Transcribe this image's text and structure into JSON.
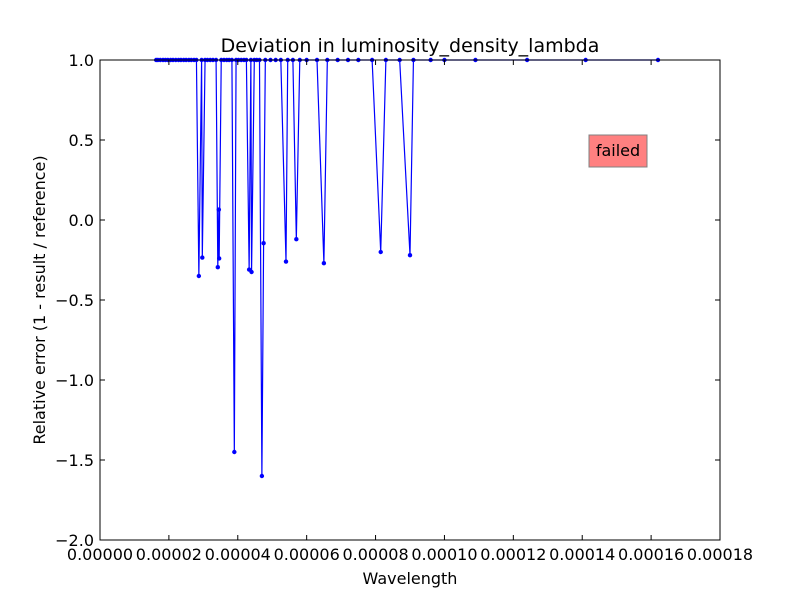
{
  "chart_data": {
    "type": "scatter",
    "title": "Deviation in luminosity_density_lambda",
    "xlabel": "Wavelength",
    "ylabel": "Relative error (1 - result / reference)",
    "xlim": [
      0.0,
      0.00018
    ],
    "ylim": [
      -2.0,
      1.0
    ],
    "x_ticks": [
      "0.00000",
      "0.00002",
      "0.00004",
      "0.00006",
      "0.00008",
      "0.00010",
      "0.00012",
      "0.00014",
      "0.00016",
      "0.00018"
    ],
    "y_ticks": [
      "−2.0",
      "−1.5",
      "−1.0",
      "−0.5",
      "0.0",
      "0.5",
      "1.0"
    ],
    "grid": false,
    "status_label": "failed",
    "colors": {
      "series": "#0000ff",
      "status_fill": "#ff8080",
      "status_border": "#808080"
    },
    "series": [
      {
        "values": [
          [
            1.63e-05,
            1.0
          ],
          [
            1.68e-05,
            1.0
          ],
          [
            1.75e-05,
            1.0
          ],
          [
            1.83e-05,
            1.0
          ],
          [
            1.9e-05,
            1.0
          ],
          [
            1.97e-05,
            1.0
          ],
          [
            2.05e-05,
            1.0
          ],
          [
            2.12e-05,
            1.0
          ],
          [
            2.2e-05,
            1.0
          ],
          [
            2.28e-05,
            1.0
          ],
          [
            2.35e-05,
            1.0
          ],
          [
            2.43e-05,
            1.0
          ],
          [
            2.5e-05,
            1.0
          ],
          [
            2.58e-05,
            1.0
          ],
          [
            2.65e-05,
            1.0
          ],
          [
            2.73e-05,
            1.0
          ],
          [
            2.8e-05,
            1.0
          ],
          [
            2.87e-05,
            -0.35
          ],
          [
            2.95e-05,
            1.0
          ],
          [
            2.97e-05,
            -0.235
          ],
          [
            3.05e-05,
            1.0
          ],
          [
            3.12e-05,
            1.0
          ],
          [
            3.2e-05,
            1.0
          ],
          [
            3.28e-05,
            1.0
          ],
          [
            3.37e-05,
            1.0
          ],
          [
            3.42e-05,
            -0.295
          ],
          [
            3.45e-05,
            0.065
          ],
          [
            3.46e-05,
            -0.24
          ],
          [
            3.52e-05,
            1.0
          ],
          [
            3.6e-05,
            1.0
          ],
          [
            3.68e-05,
            1.0
          ],
          [
            3.75e-05,
            1.0
          ],
          [
            3.83e-05,
            1.0
          ],
          [
            3.9e-05,
            -1.45
          ],
          [
            3.95e-05,
            1.0
          ],
          [
            4.02e-05,
            1.0
          ],
          [
            4.1e-05,
            1.0
          ],
          [
            4.18e-05,
            1.0
          ],
          [
            4.25e-05,
            1.0
          ],
          [
            4.33e-05,
            -0.31
          ],
          [
            4.38e-05,
            1.0
          ],
          [
            4.4e-05,
            -0.325
          ],
          [
            4.48e-05,
            1.0
          ],
          [
            4.55e-05,
            1.0
          ],
          [
            4.63e-05,
            1.0
          ],
          [
            4.7e-05,
            -1.6
          ],
          [
            4.75e-05,
            -0.145
          ],
          [
            4.8e-05,
            1.0
          ],
          [
            4.95e-05,
            1.0
          ],
          [
            5.1e-05,
            1.0
          ],
          [
            5.25e-05,
            1.0
          ],
          [
            5.4e-05,
            -0.26
          ],
          [
            5.45e-05,
            1.0
          ],
          [
            5.6e-05,
            1.0
          ],
          [
            5.7e-05,
            -0.12
          ],
          [
            5.8e-05,
            1.0
          ],
          [
            6e-05,
            1.0
          ],
          [
            6.3e-05,
            1.0
          ],
          [
            6.5e-05,
            -0.27
          ],
          [
            6.6e-05,
            1.0
          ],
          [
            6.9e-05,
            1.0
          ],
          [
            7.2e-05,
            1.0
          ],
          [
            7.5e-05,
            1.0
          ],
          [
            7.9e-05,
            1.0
          ],
          [
            8.15e-05,
            -0.2
          ],
          [
            8.3e-05,
            1.0
          ],
          [
            8.7e-05,
            1.0
          ],
          [
            9e-05,
            -0.22
          ],
          [
            9.1e-05,
            1.0
          ],
          [
            9.6e-05,
            1.0
          ],
          [
            0.0001,
            1.0
          ],
          [
            0.000109,
            1.0
          ],
          [
            0.000124,
            1.0
          ],
          [
            0.000141,
            1.0
          ],
          [
            0.000162,
            1.0
          ]
        ]
      }
    ]
  }
}
